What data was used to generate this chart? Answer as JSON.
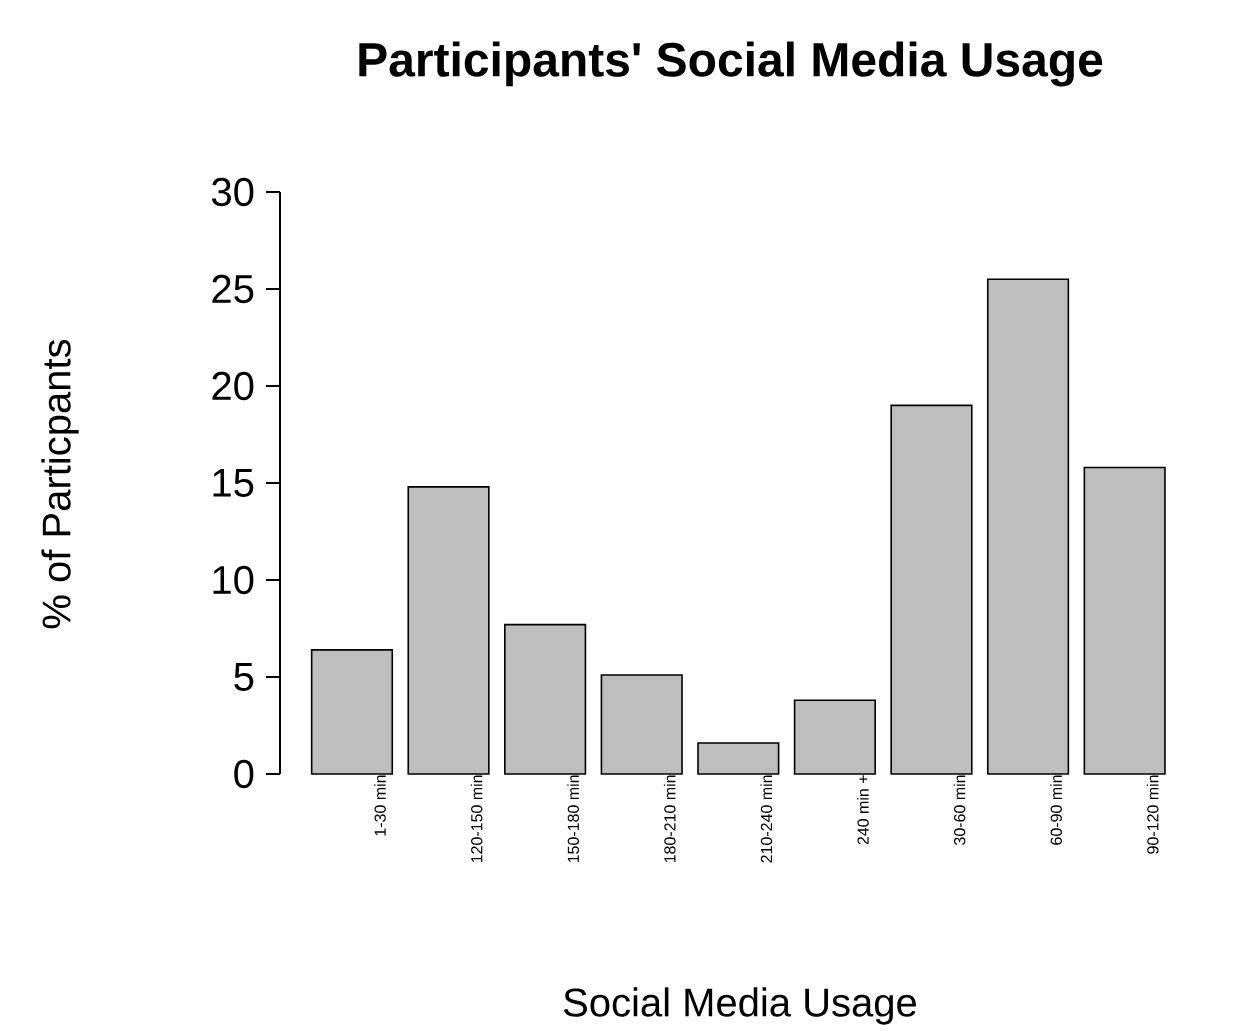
{
  "chart_data": {
    "type": "bar",
    "title": "Participants' Social Media Usage",
    "xlabel": "Social Media Usage",
    "ylabel": "% of Particpants",
    "categories": [
      "1-30 min",
      "120-150 min",
      "150-180 min",
      "180-210 min",
      "210-240 min",
      "240 min +",
      "30-60 min",
      "60-90 min",
      "90-120 min"
    ],
    "values": [
      6.4,
      14.8,
      7.7,
      5.1,
      1.6,
      3.8,
      19.0,
      25.5,
      15.8
    ],
    "color": "#bebebe",
    "ylim": [
      0,
      30
    ],
    "yticks": [
      0,
      5,
      10,
      15,
      20,
      25,
      30
    ]
  }
}
